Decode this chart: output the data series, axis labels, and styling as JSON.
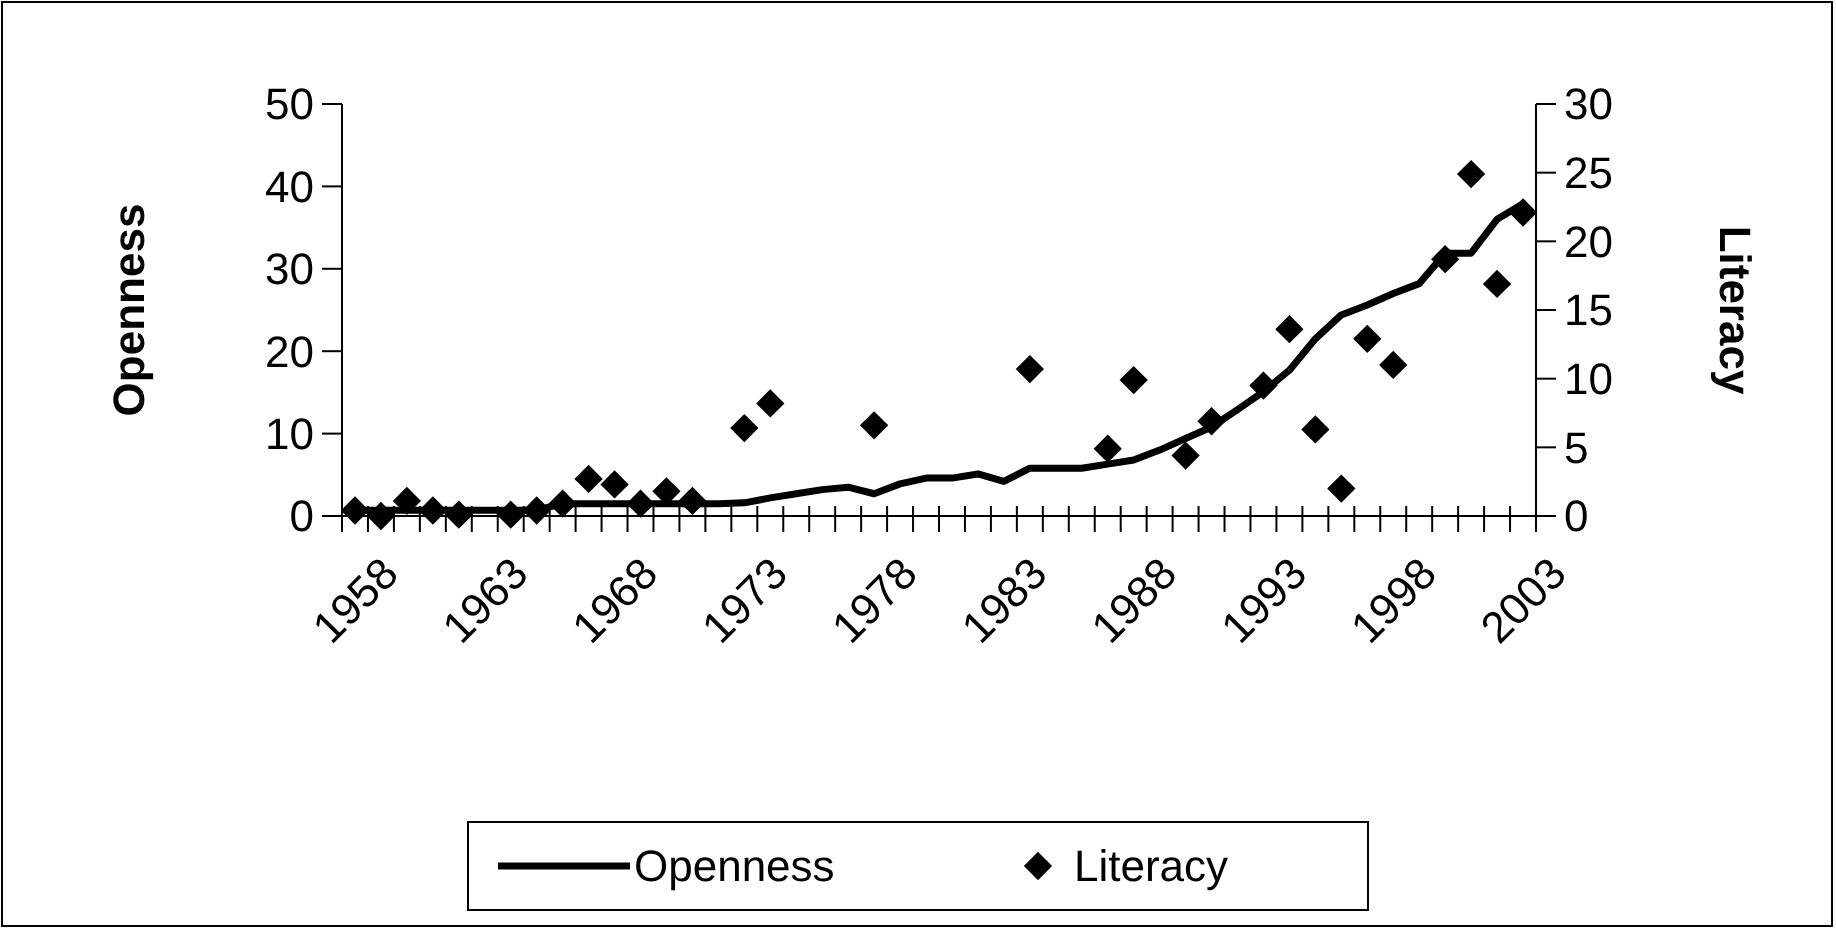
{
  "chart_data": {
    "type": "line",
    "xlabel": null,
    "ylabel": "Openness",
    "y2label": "Literacy",
    "categories": [
      "1958",
      null,
      null,
      null,
      null,
      "1963",
      null,
      null,
      null,
      null,
      "1968",
      null,
      null,
      null,
      null,
      "1973",
      null,
      null,
      null,
      null,
      "1978",
      null,
      null,
      null,
      null,
      "1983",
      null,
      null,
      null,
      null,
      "1988",
      null,
      null,
      null,
      null,
      "1993",
      null,
      null,
      null,
      null,
      "1998",
      null,
      null,
      null,
      null,
      "2003"
    ],
    "series": [
      {
        "name": "Openness",
        "color": "#000000",
        "values": [
          0.7,
          0.7,
          0.7,
          0.7,
          0.7,
          0.7,
          0.7,
          0.7,
          1.5,
          1.5,
          1.5,
          1.5,
          1.5,
          1.5,
          1.5,
          1.6,
          2.2,
          2.7,
          3.2,
          3.5,
          2.7,
          3.9,
          4.6,
          4.6,
          5.1,
          4.2,
          5.8,
          5.8,
          5.8,
          6.3,
          6.8,
          8.0,
          9.4,
          10.8,
          12.9,
          15.1,
          17.7,
          21.5,
          24.4,
          25.6,
          27.0,
          28.2,
          31.9,
          31.9,
          36.0,
          37.9
        ]
      },
      {
        "name": "Literacy",
        "type": "scatter",
        "axis": "y2",
        "marker": "diamond",
        "color": "#000000",
        "values": [
          0.4,
          0,
          1.1,
          0.4,
          0.1,
          null,
          0.1,
          0.4,
          0.9,
          2.7,
          2.3,
          0.9,
          1.8,
          1.1,
          null,
          6.4,
          8.2,
          null,
          null,
          null,
          6.6,
          null,
          null,
          null,
          null,
          null,
          10.7,
          null,
          null,
          4.9,
          9.9,
          null,
          4.4,
          6.9,
          null,
          9.5,
          13.6,
          6.3,
          2.0,
          12.9,
          11.0,
          null,
          18.7,
          24.9,
          16.9,
          22.1
        ]
      }
    ],
    "ylim": [
      0,
      50
    ],
    "yticks": [
      0,
      10,
      20,
      30,
      40,
      50
    ],
    "y2lim": [
      0,
      30
    ],
    "y2ticks": [
      0,
      5,
      10,
      15,
      20,
      25,
      30
    ],
    "grid": false,
    "legend": "bottom"
  }
}
